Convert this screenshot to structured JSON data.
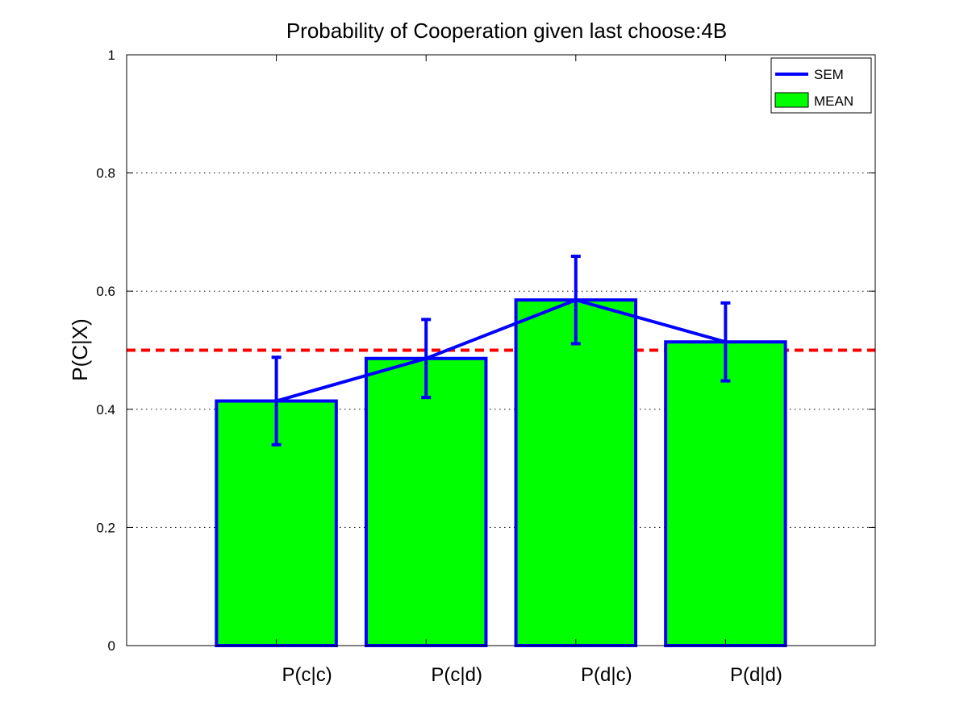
{
  "chart_data": {
    "type": "bar",
    "title": "Probability of Cooperation given last choose:4B",
    "xlabel": "",
    "ylabel": "P(C|X)",
    "ylim": [
      0,
      1
    ],
    "yticks": [
      0,
      0.2,
      0.4,
      0.6,
      0.8,
      1
    ],
    "ytick_labels": [
      "0",
      "0.2",
      "0.4",
      "0.6",
      "0.8",
      "1"
    ],
    "categories": [
      "P(c|c)",
      "P(c|d)",
      "P(d|c)",
      "P(d|d)"
    ],
    "series": [
      {
        "name": "MEAN",
        "kind": "bar",
        "values": [
          0.414,
          0.486,
          0.585,
          0.514
        ]
      },
      {
        "name": "SEM",
        "kind": "errorline",
        "values": [
          0.414,
          0.486,
          0.585,
          0.514
        ],
        "errors": [
          0.074,
          0.066,
          0.074,
          0.066
        ]
      }
    ],
    "reference_line": {
      "y": 0.5,
      "style": "dashed"
    },
    "grid": {
      "y": true,
      "x": false,
      "style": "dotted"
    },
    "legend": {
      "placement": "top-right",
      "entries": [
        "SEM",
        "MEAN"
      ]
    },
    "colors": {
      "bar_fill": "#00ff00",
      "bar_edge": "#0000ff",
      "sem_line": "#0000ff",
      "reference_line": "#ff0000",
      "grid": "#000000"
    }
  }
}
